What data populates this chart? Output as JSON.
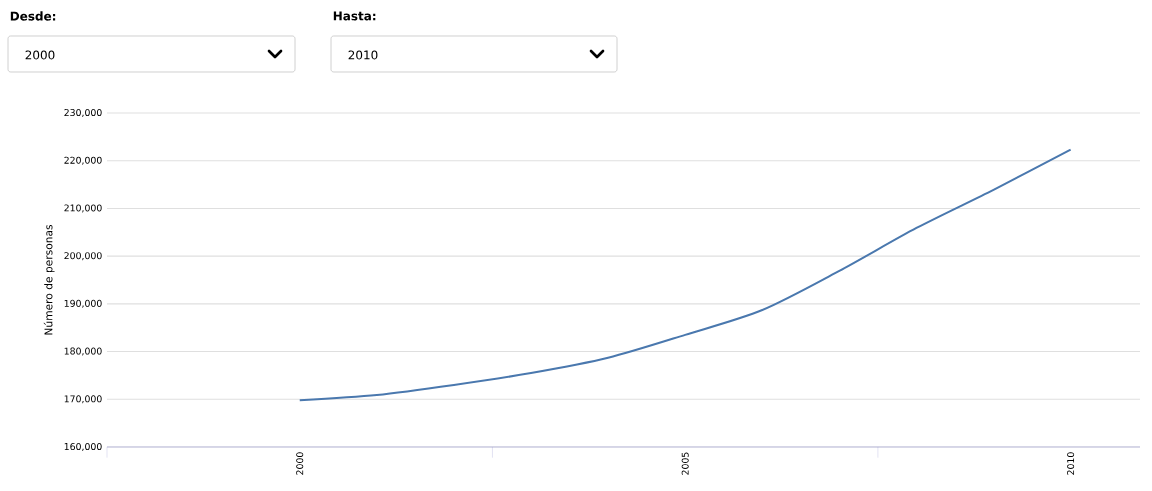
{
  "chart_data": {
    "type": "line",
    "ylabel": "Número de personas",
    "annotations": [
      "Desde:",
      "2000",
      "Hasta:",
      "2010"
    ],
    "x": [
      2000,
      2001,
      2002,
      2003,
      2004,
      2005,
      2006,
      2007,
      2008,
      2009,
      2010
    ],
    "series": [
      {
        "color": "#4a78ae",
        "values": [
          169800,
          170900,
          173000,
          175500,
          178700,
          183500,
          188700,
          196900,
          205900,
          213900,
          222300
        ]
      }
    ],
    "xlim": [
      1997.5,
      2010.9
    ],
    "xticks": [
      {
        "value": 1997.5,
        "label": null
      },
      2000,
      {
        "value": 2002.5,
        "label": null
      },
      2005,
      {
        "value": 2007.5,
        "label": null
      },
      2010
    ],
    "ylim": [
      160000,
      230000
    ],
    "yticks": [
      {
        "value": 160000,
        "label": "160,000"
      },
      {
        "value": 170000,
        "label": "170,000"
      },
      {
        "value": 180000,
        "label": "180,000"
      },
      {
        "value": 190000,
        "label": "190,000"
      },
      {
        "value": 200000,
        "label": "200,000"
      },
      {
        "value": 210000,
        "label": "210,000"
      },
      {
        "value": 220000,
        "label": "220,000"
      },
      {
        "value": 230000,
        "label": "230,000"
      }
    ],
    "grid": "y",
    "marker": "none",
    "line_style": "solid"
  }
}
